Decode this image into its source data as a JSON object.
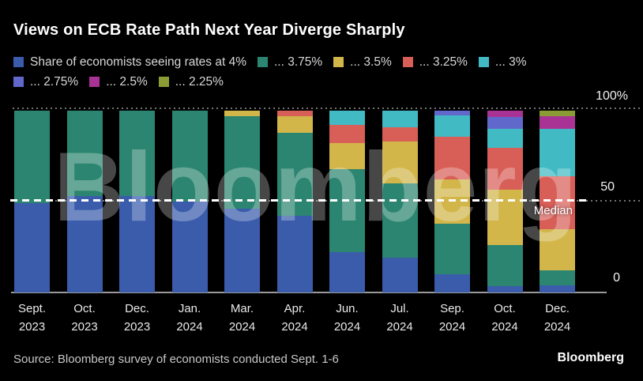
{
  "title": "Views on ECB Rate Path Next Year Diverge Sharply",
  "watermark": "Bloomberg",
  "footer": {
    "source": "Source: Bloomberg survey of economists conducted Sept. 1-6",
    "logo": "Bloomberg"
  },
  "axis": {
    "y_ticks": [
      "100%",
      "50",
      "0"
    ],
    "median_label": "Median"
  },
  "colors": {
    "background": "#000000",
    "median_line": "#ffffff",
    "gridline": "#8a8a8a"
  },
  "chart_data": {
    "type": "bar",
    "stacked": true,
    "unit": "share of economists, %",
    "ylim": [
      0,
      100
    ],
    "grid": "dotted gridlines at 50 and 100, white dashed median line at 50",
    "legend_position": "top",
    "categories": [
      "Sept. 2023",
      "Oct. 2023",
      "Dec. 2023",
      "Jan. 2024",
      "Mar. 2024",
      "Apr. 2024",
      "Jun. 2024",
      "Jul. 2024",
      "Sep. 2024",
      "Oct. 2024",
      "Dec. 2024"
    ],
    "series": [
      {
        "name": "4%",
        "legend": "Share of economists seeing rates at 4%",
        "color": "#3a5cab",
        "values": [
          49,
          53,
          53,
          50,
          46,
          42,
          22,
          19,
          10,
          3.5,
          4
        ]
      },
      {
        "name": "3.75%",
        "legend": "... 3.75%",
        "color": "#2b8570",
        "values": [
          51,
          47,
          47,
          50,
          51,
          46,
          46,
          41,
          28,
          22.5,
          8
        ]
      },
      {
        "name": "3.5%",
        "legend": "... 3.5%",
        "color": "#d2b64a",
        "values": [
          0,
          0,
          0,
          0,
          3,
          9,
          14,
          23,
          24,
          30.5,
          23
        ]
      },
      {
        "name": "3.25%",
        "legend": "... 3.25%",
        "color": "#d85f58",
        "values": [
          0,
          0,
          0,
          0,
          0,
          3,
          10,
          8,
          23.5,
          23,
          29
        ]
      },
      {
        "name": "3%",
        "legend": "... 3%",
        "color": "#41bac4",
        "values": [
          0,
          0,
          0,
          0,
          0,
          0,
          8,
          9,
          12,
          10.5,
          26
        ]
      },
      {
        "name": "2.75%",
        "legend": "... 2.75%",
        "color": "#6168cc",
        "values": [
          0,
          0,
          0,
          0,
          0,
          0,
          0,
          0,
          2.5,
          6.5,
          0
        ]
      },
      {
        "name": "2.5%",
        "legend": "... 2.5%",
        "color": "#a93394",
        "values": [
          0,
          0,
          0,
          0,
          0,
          0,
          0,
          0,
          0,
          3.5,
          7
        ]
      },
      {
        "name": "2.25%",
        "legend": "... 2.25%",
        "color": "#8c9c35",
        "values": [
          0,
          0,
          0,
          0,
          0,
          0,
          0,
          0,
          0,
          0,
          3
        ]
      }
    ],
    "legend_rows": [
      [
        0,
        1,
        2,
        3,
        4
      ],
      [
        5,
        6,
        7
      ]
    ]
  }
}
